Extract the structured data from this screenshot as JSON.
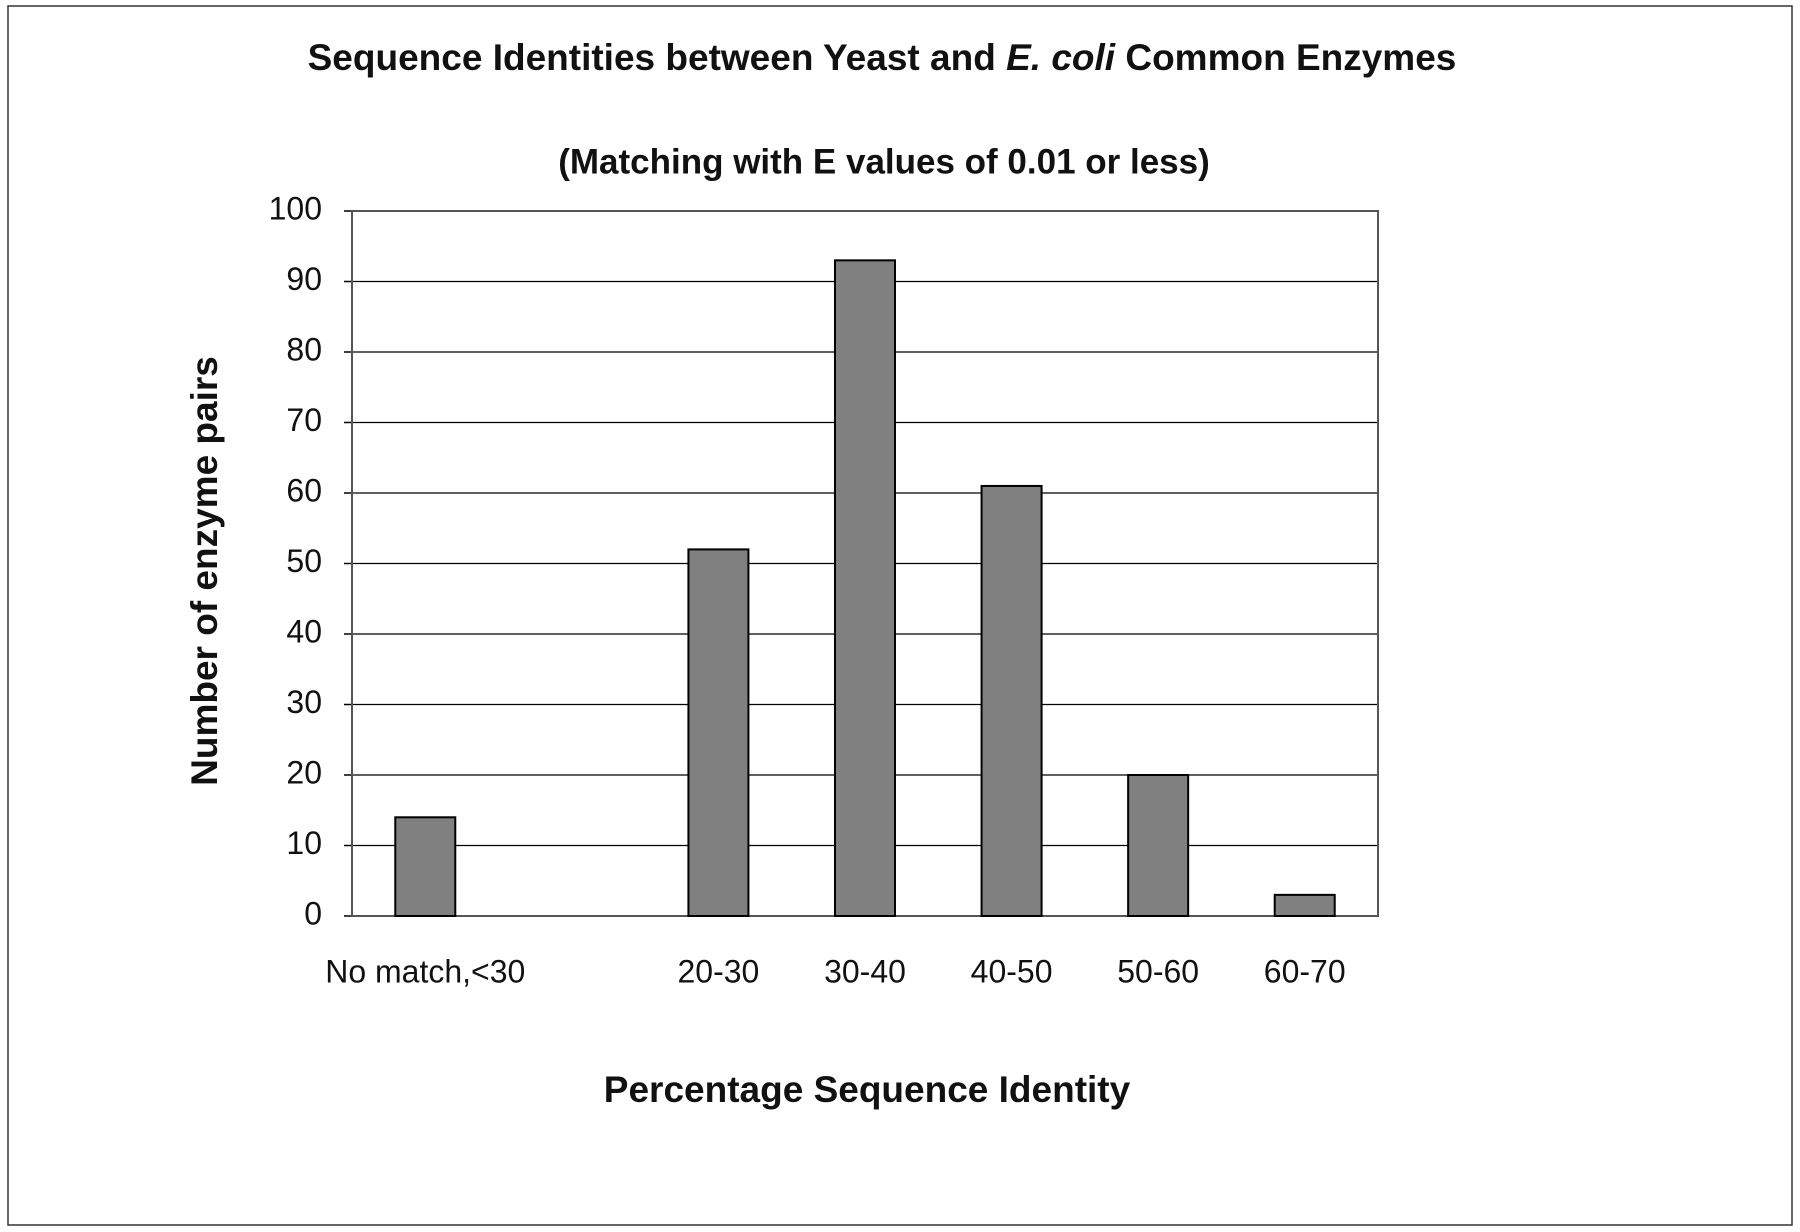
{
  "chart_data": {
    "type": "bar",
    "title": [
      "Sequence Identities between Yeast and ",
      "E. coli",
      " Common Enzymes"
    ],
    "subtitle": "(Matching with E values of 0.01 or less)",
    "x_label": "Percentage Sequence Identity",
    "y_label": "Number of enzyme pairs",
    "categories": [
      "No match,<30",
      null,
      "20-30",
      "30-40",
      "40-50",
      "50-60",
      "60-70"
    ],
    "values": [
      14,
      null,
      52,
      93,
      61,
      20,
      3
    ],
    "color": "#808080",
    "ylim": [
      0,
      100
    ],
    "yticks": [
      0,
      10,
      20,
      30,
      40,
      50,
      60,
      70,
      80,
      90,
      100
    ],
    "grid": true
  }
}
